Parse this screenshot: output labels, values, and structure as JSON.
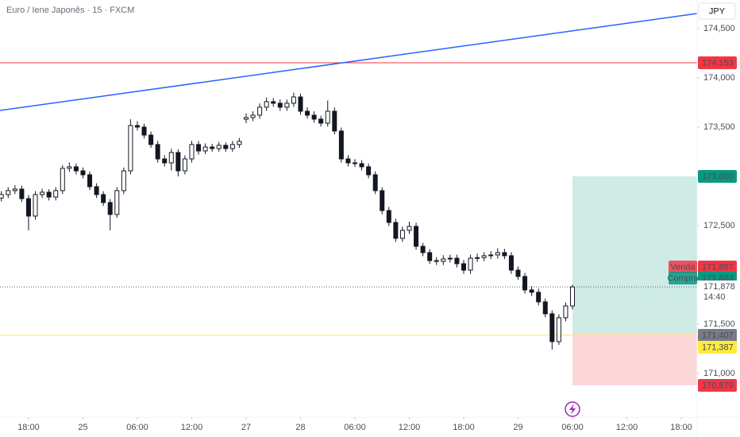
{
  "chart_data": {
    "type": "candlestick",
    "title": "Euro / Iene Japonês · 15 · FXCM",
    "currency": "JPY",
    "up_color": "#ffffff",
    "down_color": "#131722",
    "wick_color": "#131722",
    "xlim": [
      -12.6,
      295
    ],
    "ylim": [
      170.556,
      174.79
    ],
    "xticks": [
      {
        "value": 0,
        "label": "18:00"
      },
      {
        "value": 24,
        "label": "25"
      },
      {
        "value": 48,
        "label": "06:00"
      },
      {
        "value": 72,
        "label": "12:00"
      },
      {
        "value": 96,
        "label": "27"
      },
      {
        "value": 120,
        "label": "28"
      },
      {
        "value": 144,
        "label": "06:00"
      },
      {
        "value": 168,
        "label": "12:00"
      },
      {
        "value": 192,
        "label": "18:00"
      },
      {
        "value": 216,
        "label": "29"
      },
      {
        "value": 240,
        "label": "06:00"
      },
      {
        "value": 264,
        "label": "12:00"
      },
      {
        "value": 288,
        "label": "18:00"
      }
    ],
    "yticks": [
      {
        "value": 174.5,
        "label": "174,500"
      },
      {
        "value": 174.0,
        "label": "174,000"
      },
      {
        "value": 173.5,
        "label": "173,500"
      },
      {
        "value": 172.5,
        "label": "172,500"
      },
      {
        "value": 171.5,
        "label": "171,500"
      },
      {
        "value": 171.0,
        "label": "171,000"
      }
    ],
    "x": [
      -12,
      -9,
      -6,
      -3,
      0,
      3,
      6,
      9,
      12,
      15,
      18,
      21,
      24,
      27,
      30,
      33,
      36,
      39,
      42,
      45,
      48,
      51,
      54,
      57,
      60,
      63,
      66,
      69,
      72,
      75,
      78,
      81,
      84,
      87,
      90,
      93,
      96,
      99,
      102,
      105,
      108,
      111,
      114,
      117,
      120,
      123,
      126,
      129,
      132,
      135,
      138,
      141,
      144,
      147,
      150,
      153,
      156,
      159,
      162,
      165,
      168,
      171,
      174,
      177,
      180,
      183,
      186,
      189,
      192,
      195,
      198,
      201,
      204,
      207,
      210,
      213,
      216,
      219,
      222,
      225,
      228,
      231,
      234,
      237,
      240
    ],
    "candles": [
      [
        172.78,
        172.85,
        172.745,
        172.815
      ],
      [
        172.815,
        172.89,
        172.78,
        172.855
      ],
      [
        172.855,
        172.91,
        172.82,
        172.871
      ],
      [
        172.871,
        172.905,
        172.74,
        172.774
      ],
      [
        172.774,
        172.81,
        172.452,
        172.597
      ],
      [
        172.597,
        172.85,
        172.56,
        172.815
      ],
      [
        172.815,
        172.875,
        172.78,
        172.839
      ],
      [
        172.839,
        172.87,
        172.755,
        172.79
      ],
      [
        172.79,
        172.89,
        172.755,
        172.855
      ],
      [
        172.855,
        173.115,
        172.82,
        173.081
      ],
      [
        173.081,
        173.14,
        173.045,
        173.097
      ],
      [
        173.097,
        173.13,
        173.02,
        173.056
      ],
      [
        173.056,
        173.09,
        172.98,
        173.016
      ],
      [
        173.016,
        173.05,
        172.86,
        172.895
      ],
      [
        172.895,
        172.93,
        172.78,
        172.815
      ],
      [
        172.815,
        172.85,
        172.7,
        172.734
      ],
      [
        172.734,
        172.77,
        172.452,
        172.613
      ],
      [
        172.613,
        172.89,
        172.58,
        172.855
      ],
      [
        172.855,
        173.09,
        172.82,
        173.056
      ],
      [
        173.056,
        173.58,
        173.02,
        173.516
      ],
      [
        173.516,
        173.56,
        173.465,
        173.5
      ],
      [
        173.5,
        173.535,
        173.385,
        173.419
      ],
      [
        173.419,
        173.455,
        173.29,
        173.323
      ],
      [
        173.323,
        173.36,
        173.14,
        173.177
      ],
      [
        173.177,
        173.215,
        173.1,
        173.137
      ],
      [
        173.137,
        173.28,
        173.06,
        173.242
      ],
      [
        173.242,
        173.275,
        173.0,
        173.056
      ],
      [
        173.056,
        173.215,
        173.02,
        173.177
      ],
      [
        173.177,
        173.36,
        173.14,
        173.323
      ],
      [
        173.323,
        173.36,
        173.22,
        173.258
      ],
      [
        173.258,
        173.335,
        173.225,
        173.298
      ],
      [
        173.298,
        173.33,
        173.25,
        173.282
      ],
      [
        173.282,
        173.35,
        173.25,
        173.315
      ],
      [
        173.315,
        173.345,
        173.25,
        173.282
      ],
      [
        173.282,
        173.36,
        173.25,
        173.323
      ],
      [
        173.323,
        173.39,
        173.29,
        173.355
      ],
      [
        173.58,
        173.64,
        173.54,
        173.597
      ],
      [
        173.597,
        173.66,
        173.56,
        173.621
      ],
      [
        173.621,
        173.74,
        173.585,
        173.702
      ],
      [
        173.702,
        173.8,
        173.665,
        173.758
      ],
      [
        173.758,
        173.795,
        173.705,
        173.742
      ],
      [
        173.742,
        173.78,
        173.665,
        173.702
      ],
      [
        173.702,
        173.78,
        173.665,
        173.742
      ],
      [
        173.742,
        173.85,
        173.705,
        173.806
      ],
      [
        173.806,
        173.84,
        173.625,
        173.661
      ],
      [
        173.661,
        173.7,
        173.585,
        173.621
      ],
      [
        173.621,
        173.66,
        173.545,
        173.581
      ],
      [
        173.581,
        173.615,
        173.505,
        173.54
      ],
      [
        173.54,
        173.77,
        173.505,
        173.661
      ],
      [
        173.661,
        173.7,
        173.425,
        173.46
      ],
      [
        173.46,
        173.495,
        173.14,
        173.177
      ],
      [
        173.177,
        173.215,
        173.1,
        173.137
      ],
      [
        173.137,
        173.175,
        173.095,
        173.129
      ],
      [
        173.129,
        173.165,
        173.06,
        173.097
      ],
      [
        173.097,
        173.13,
        172.98,
        173.016
      ],
      [
        173.016,
        173.05,
        172.82,
        172.855
      ],
      [
        172.855,
        172.89,
        172.615,
        172.653
      ],
      [
        172.653,
        172.69,
        172.495,
        172.532
      ],
      [
        172.532,
        172.57,
        172.335,
        172.371
      ],
      [
        172.371,
        172.49,
        172.335,
        172.452
      ],
      [
        172.452,
        172.54,
        172.415,
        172.492
      ],
      [
        172.492,
        172.53,
        172.255,
        172.29
      ],
      [
        172.29,
        172.325,
        172.19,
        172.226
      ],
      [
        172.226,
        172.26,
        172.11,
        172.145
      ],
      [
        172.145,
        172.18,
        172.1,
        172.137
      ],
      [
        172.137,
        172.2,
        172.1,
        172.161
      ],
      [
        172.161,
        172.205,
        172.125,
        172.169
      ],
      [
        172.169,
        172.205,
        172.075,
        172.113
      ],
      [
        172.113,
        172.15,
        172.01,
        172.048
      ],
      [
        172.048,
        172.205,
        172.01,
        172.169
      ],
      [
        172.169,
        172.215,
        172.13,
        172.175
      ],
      [
        172.175,
        172.23,
        172.14,
        172.194
      ],
      [
        172.194,
        172.24,
        172.16,
        172.202
      ],
      [
        172.202,
        172.27,
        172.165,
        172.226
      ],
      [
        172.226,
        172.265,
        172.16,
        172.194
      ],
      [
        172.194,
        172.23,
        172.01,
        172.048
      ],
      [
        172.048,
        172.085,
        171.95,
        171.984
      ],
      [
        171.984,
        172.02,
        171.81,
        171.847
      ],
      [
        171.847,
        171.885,
        171.785,
        171.823
      ],
      [
        171.823,
        171.86,
        171.69,
        171.726
      ],
      [
        171.726,
        171.76,
        171.57,
        171.605
      ],
      [
        171.605,
        171.64,
        171.242,
        171.323
      ],
      [
        171.323,
        171.6,
        171.29,
        171.565
      ],
      [
        171.565,
        171.72,
        171.53,
        171.685
      ],
      [
        171.685,
        171.9,
        171.65,
        171.878
      ]
    ],
    "price_labels": [
      {
        "value": 174.153,
        "label": "174,153",
        "color": "#f23645",
        "line": "solid"
      },
      {
        "value": 173.0,
        "label": "173,000",
        "color": "#089981"
      },
      {
        "value": 171.887,
        "label": "171,887",
        "tag": "Venda",
        "color": "#f23645"
      },
      {
        "value": 171.883,
        "label": "171,883",
        "tag": "Compra",
        "color": "#089981"
      },
      {
        "value": 171.878,
        "label": "171,878",
        "time": "14:40",
        "color": "#ffffff",
        "line": "dotted"
      },
      {
        "value": 171.407,
        "label": "171,407",
        "color": "#787b86"
      },
      {
        "value": 171.387,
        "label": "171,387",
        "color": "#ffeb3b",
        "line": "solid"
      },
      {
        "value": 170.879,
        "label": "170,879",
        "color": "#f23645"
      }
    ]
  }
}
